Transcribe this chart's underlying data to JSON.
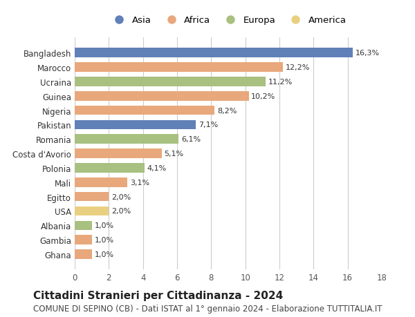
{
  "countries": [
    "Bangladesh",
    "Marocco",
    "Ucraina",
    "Guinea",
    "Nigeria",
    "Pakistan",
    "Romania",
    "Costa d'Avorio",
    "Polonia",
    "Mali",
    "Egitto",
    "USA",
    "Albania",
    "Gambia",
    "Ghana"
  ],
  "values": [
    16.3,
    12.2,
    11.2,
    10.2,
    8.2,
    7.1,
    6.1,
    5.1,
    4.1,
    3.1,
    2.0,
    2.0,
    1.0,
    1.0,
    1.0
  ],
  "labels": [
    "16,3%",
    "12,2%",
    "11,2%",
    "10,2%",
    "8,2%",
    "7,1%",
    "6,1%",
    "5,1%",
    "4,1%",
    "3,1%",
    "2,0%",
    "2,0%",
    "1,0%",
    "1,0%",
    "1,0%"
  ],
  "continents": [
    "Asia",
    "Africa",
    "Europa",
    "Africa",
    "Africa",
    "Asia",
    "Europa",
    "Africa",
    "Europa",
    "Africa",
    "Africa",
    "America",
    "Europa",
    "Africa",
    "Africa"
  ],
  "continent_colors": {
    "Asia": "#6080b8",
    "Africa": "#e8a87c",
    "Europa": "#a8c080",
    "America": "#e8d080"
  },
  "legend_order": [
    "Asia",
    "Africa",
    "Europa",
    "America"
  ],
  "title": "Cittadini Stranieri per Cittadinanza - 2024",
  "subtitle": "COMUNE DI SEPINO (CB) - Dati ISTAT al 1° gennaio 2024 - Elaborazione TUTTITALIA.IT",
  "xlim": [
    0,
    18
  ],
  "xticks": [
    0,
    2,
    4,
    6,
    8,
    10,
    12,
    14,
    16,
    18
  ],
  "background_color": "#ffffff",
  "grid_color": "#cccccc",
  "title_fontsize": 11,
  "subtitle_fontsize": 8.5,
  "label_fontsize": 8,
  "tick_fontsize": 8.5,
  "legend_fontsize": 9.5
}
